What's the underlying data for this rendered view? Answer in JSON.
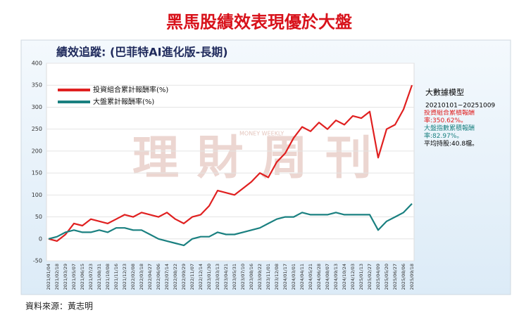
{
  "chart_data": {
    "type": "line",
    "title": "黑馬股績效表現優於大盤",
    "subtitle": "績效追蹤: (巴菲特AI進化版-長期)",
    "watermark": "理財周刊",
    "watermark_en": "MONEY WEEKLY",
    "source": "資料來源：黃志明",
    "categories": [
      "2021/01/04",
      "2021/02/18",
      "2021/03/29",
      "2021/05/07",
      "2021/06/15",
      "2021/07/23",
      "2021/08/31",
      "2021/10/08",
      "2021/11/16",
      "2021/12/23",
      "2022/02/08",
      "2022/03/18",
      "2022/04/27",
      "2022/06/06",
      "2022/07/14",
      "2022/08/22",
      "2022/09/29",
      "2022/11/07",
      "2022/12/14",
      "2023/01/30",
      "2023/03/13",
      "2023/04/21",
      "2023/05/31",
      "2023/07/10",
      "2023/08/16",
      "2023/09/22",
      "2023/11/01",
      "2023/12/08",
      "2024/01/17",
      "2024/03/01",
      "2024/04/11",
      "2024/05/21",
      "2024/06/28",
      "2024/08/07",
      "2024/09/13",
      "2024/10/24",
      "2024/12/03",
      "2025/01/13",
      "2025/02/27",
      "2025/04/09",
      "2025/05/20",
      "2025/06/27",
      "2025/08/06",
      "2025/09/18"
    ],
    "series": [
      {
        "name": "投資組合累計報酬率(%)",
        "color": "#e02020",
        "values": [
          0,
          -5,
          10,
          35,
          30,
          45,
          40,
          35,
          45,
          55,
          50,
          60,
          55,
          50,
          60,
          45,
          35,
          50,
          55,
          75,
          110,
          105,
          100,
          115,
          130,
          150,
          140,
          175,
          195,
          230,
          255,
          245,
          265,
          250,
          270,
          260,
          280,
          275,
          290,
          185,
          250,
          260,
          295,
          350
        ]
      },
      {
        "name": "大盤累計報酬率(%)",
        "color": "#1a8080",
        "values": [
          0,
          5,
          15,
          20,
          15,
          15,
          20,
          15,
          25,
          25,
          20,
          20,
          10,
          0,
          -5,
          -10,
          -15,
          0,
          5,
          5,
          15,
          10,
          10,
          15,
          20,
          25,
          35,
          45,
          50,
          50,
          60,
          55,
          55,
          55,
          60,
          55,
          55,
          55,
          55,
          20,
          40,
          50,
          60,
          80
        ]
      }
    ],
    "ylim": [
      -50,
      400
    ],
    "yticks": [
      -50,
      0,
      50,
      100,
      150,
      200,
      250,
      300,
      350,
      400
    ],
    "grid": true,
    "side_panel": {
      "heading": "大數據模型",
      "period": "20210101~20251009",
      "portfolio": "投資組合累積報酬率:350.62%。",
      "market": "大盤指數累積報酬率:82.97%。",
      "holdings": "平均持股:40.8檔。"
    }
  }
}
